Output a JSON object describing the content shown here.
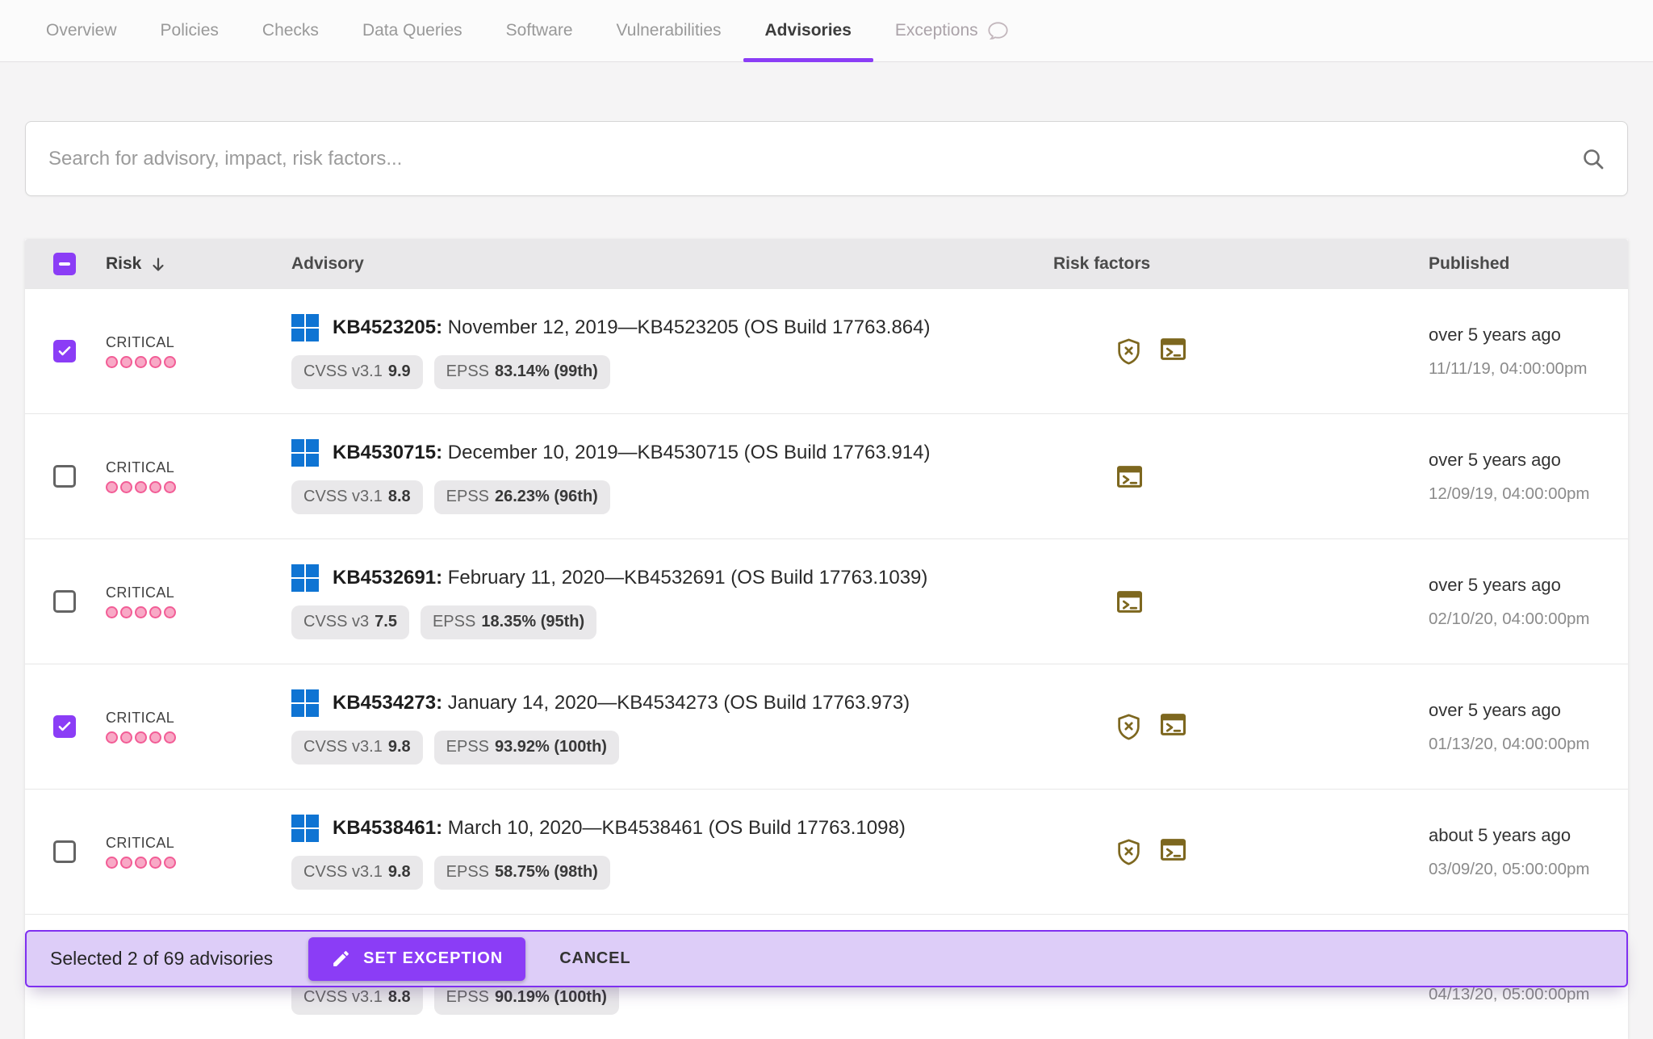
{
  "tabs": [
    {
      "label": "Overview",
      "active": false
    },
    {
      "label": "Policies",
      "active": false
    },
    {
      "label": "Checks",
      "active": false
    },
    {
      "label": "Data Queries",
      "active": false
    },
    {
      "label": "Software",
      "active": false
    },
    {
      "label": "Vulnerabilities",
      "active": false
    },
    {
      "label": "Advisories",
      "active": true
    },
    {
      "label": "Exceptions",
      "active": false,
      "muted": true,
      "icon": "speech-bubble-icon"
    }
  ],
  "search": {
    "placeholder": "Search for advisory, impact, risk factors...",
    "icon": "search-icon"
  },
  "table": {
    "headers": {
      "risk": "Risk",
      "advisory": "Advisory",
      "risk_factors": "Risk factors",
      "published": "Published"
    },
    "sort": {
      "column": "Risk",
      "direction": "desc",
      "icon": "arrow-down-icon"
    },
    "select_all_state": "indeterminate",
    "rows": [
      {
        "checked": true,
        "severity": "CRITICAL",
        "severity_dots": 5,
        "os_icon": "windows-icon",
        "kb": "KB4523205:",
        "title": "November 12, 2019—KB4523205 (OS Build 17763.864)",
        "cvss_label": "CVSS v3.1",
        "cvss_value": "9.9",
        "epss_label": "EPSS",
        "epss_value": "83.14% (99th)",
        "risk_icons": [
          "shield-x-icon",
          "terminal-icon"
        ],
        "published_relative": "over 5 years ago",
        "published_date": "11/11/19, 04:00:00pm"
      },
      {
        "checked": false,
        "severity": "CRITICAL",
        "severity_dots": 5,
        "os_icon": "windows-icon",
        "kb": "KB4530715:",
        "title": "December 10, 2019—KB4530715 (OS Build 17763.914)",
        "cvss_label": "CVSS v3.1",
        "cvss_value": "8.8",
        "epss_label": "EPSS",
        "epss_value": "26.23% (96th)",
        "risk_icons": [
          "terminal-icon"
        ],
        "published_relative": "over 5 years ago",
        "published_date": "12/09/19, 04:00:00pm"
      },
      {
        "checked": false,
        "severity": "CRITICAL",
        "severity_dots": 5,
        "os_icon": "windows-icon",
        "kb": "KB4532691:",
        "title": "February 11, 2020—KB4532691 (OS Build 17763.1039)",
        "cvss_label": "CVSS v3",
        "cvss_value": "7.5",
        "epss_label": "EPSS",
        "epss_value": "18.35% (95th)",
        "risk_icons": [
          "terminal-icon"
        ],
        "published_relative": "over 5 years ago",
        "published_date": "02/10/20, 04:00:00pm"
      },
      {
        "checked": true,
        "severity": "CRITICAL",
        "severity_dots": 5,
        "os_icon": "windows-icon",
        "kb": "KB4534273:",
        "title": "January 14, 2020—KB4534273 (OS Build 17763.973)",
        "cvss_label": "CVSS v3.1",
        "cvss_value": "9.8",
        "epss_label": "EPSS",
        "epss_value": "93.92% (100th)",
        "risk_icons": [
          "shield-x-icon",
          "terminal-icon"
        ],
        "published_relative": "over 5 years ago",
        "published_date": "01/13/20, 04:00:00pm"
      },
      {
        "checked": false,
        "severity": "CRITICAL",
        "severity_dots": 5,
        "os_icon": "windows-icon",
        "kb": "KB4538461:",
        "title": "March 10, 2020—KB4538461 (OS Build 17763.1098)",
        "cvss_label": "CVSS v3.1",
        "cvss_value": "9.8",
        "epss_label": "EPSS",
        "epss_value": "58.75% (98th)",
        "risk_icons": [
          "shield-x-icon",
          "terminal-icon"
        ],
        "published_relative": "about 5 years ago",
        "published_date": "03/09/20, 05:00:00pm"
      },
      {
        "checked": null,
        "severity": "",
        "severity_dots": 0,
        "os_icon": "",
        "kb": "",
        "title": "",
        "cvss_label": "CVSS v3.1",
        "cvss_value": "8.8",
        "epss_label": "EPSS",
        "epss_value": "90.19% (100th)",
        "risk_icons": [],
        "published_relative": "",
        "published_date": "04/13/20, 05:00:00pm"
      }
    ]
  },
  "action_bar": {
    "selected_text": "Selected 2 of 69 advisories",
    "set_exception_label": "SET EXCEPTION",
    "set_exception_icon": "pencil-icon",
    "cancel_label": "CANCEL"
  },
  "colors": {
    "accent_purple": "#8b3df6",
    "action_bar_bg": "#ddcdf8",
    "action_bar_border": "#7f30f0",
    "severity_pink": "#f25d96",
    "severity_pink_fill": "#f8a9c6",
    "risk_factor_icon": "#7d671f",
    "windows_blue": "#0f74d3"
  }
}
